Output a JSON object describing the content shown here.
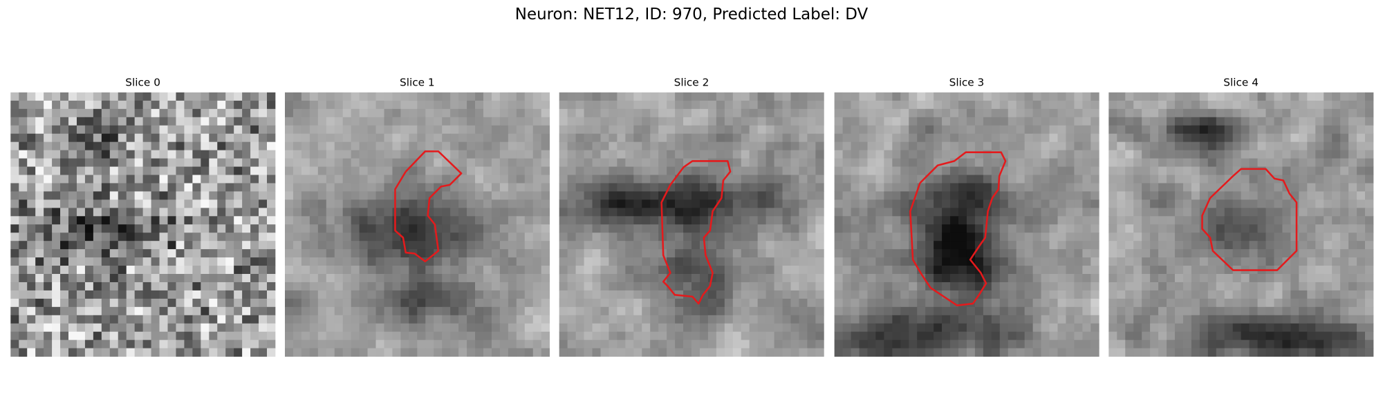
{
  "title": "Neuron: NET12, ID: 970, Predicted Label: DV",
  "panels": [
    {
      "title": "Slice 0"
    },
    {
      "title": "Slice 1"
    },
    {
      "title": "Slice 2"
    },
    {
      "title": "Slice 3"
    },
    {
      "title": "Slice 4"
    }
  ]
}
